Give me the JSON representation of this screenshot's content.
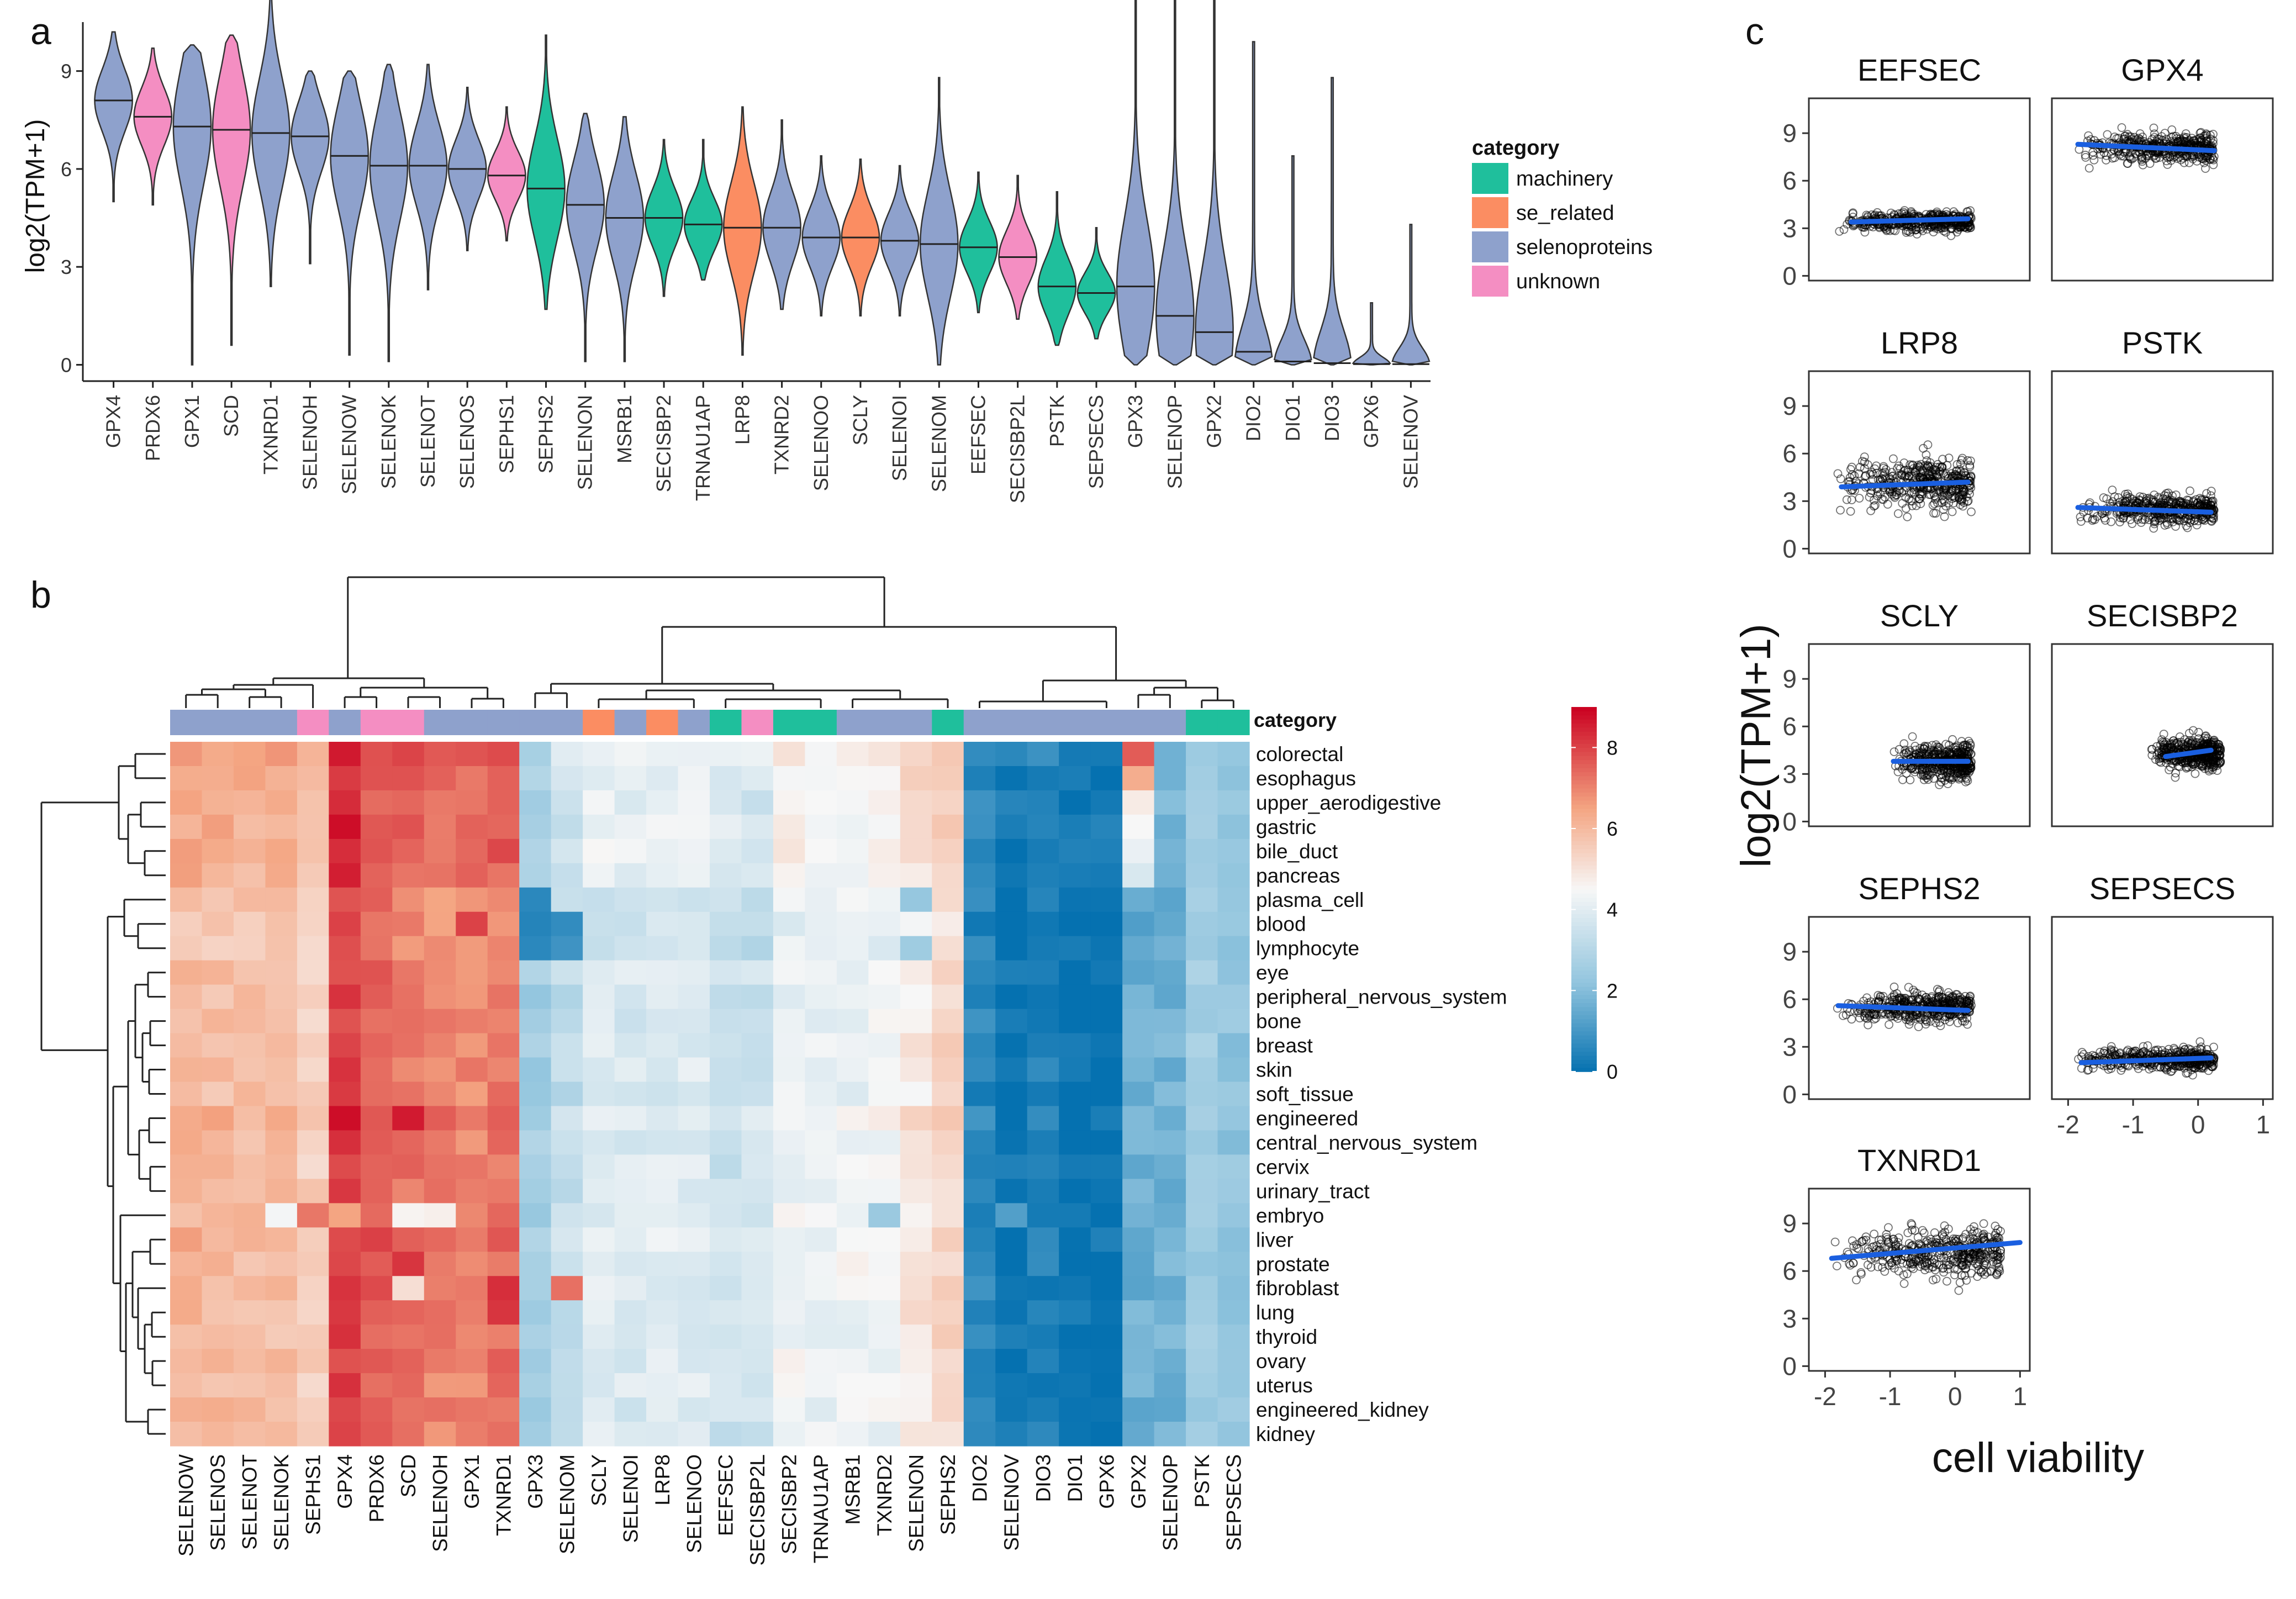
{
  "panels": {
    "a": "a",
    "b": "b",
    "c": "c"
  },
  "colors": {
    "machinery": "#1fbf9c",
    "se_related": "#fb8d62",
    "selenoproteins": "#8ea1cc",
    "unknown": "#f48ec2",
    "heat_low": "#0571b0",
    "heat_mid": "#f7f7f7",
    "heat_high": "#ca0020",
    "trend": "#1a5fe0"
  },
  "chart_data": [
    {
      "id": "a",
      "type": "violin",
      "ylabel": "log2(TPM+1)",
      "ylim": [
        -0.5,
        10.5
      ],
      "yticks": [
        0,
        3,
        6,
        9
      ],
      "legend": {
        "title": "category",
        "placement": "right",
        "items": [
          "machinery",
          "se_related",
          "selenoproteins",
          "unknown"
        ]
      },
      "genes": [
        {
          "gene": "GPX4",
          "category": "selenoproteins",
          "median": 8.1,
          "min": 5.0,
          "max": 10.2
        },
        {
          "gene": "PRDX6",
          "category": "unknown",
          "median": 7.6,
          "min": 4.9,
          "max": 9.7
        },
        {
          "gene": "GPX1",
          "category": "selenoproteins",
          "median": 7.3,
          "min": 0.0,
          "max": 9.8
        },
        {
          "gene": "SCD",
          "category": "unknown",
          "median": 7.2,
          "min": 0.6,
          "max": 10.1
        },
        {
          "gene": "TXNRD1",
          "category": "selenoproteins",
          "median": 7.1,
          "min": 2.4,
          "max": 11.6
        },
        {
          "gene": "SELENOH",
          "category": "selenoproteins",
          "median": 7.0,
          "min": 3.1,
          "max": 9.0
        },
        {
          "gene": "SELENOW",
          "category": "selenoproteins",
          "median": 6.4,
          "min": 0.3,
          "max": 9.0
        },
        {
          "gene": "SELENOK",
          "category": "selenoproteins",
          "median": 6.1,
          "min": 0.1,
          "max": 9.2
        },
        {
          "gene": "SELENOT",
          "category": "selenoproteins",
          "median": 6.1,
          "min": 2.3,
          "max": 9.2
        },
        {
          "gene": "SELENOS",
          "category": "selenoproteins",
          "median": 6.0,
          "min": 3.5,
          "max": 8.5
        },
        {
          "gene": "SEPHS1",
          "category": "unknown",
          "median": 5.8,
          "min": 3.8,
          "max": 7.9
        },
        {
          "gene": "SEPHS2",
          "category": "machinery",
          "median": 5.4,
          "min": 1.7,
          "max": 10.1
        },
        {
          "gene": "SELENON",
          "category": "selenoproteins",
          "median": 4.9,
          "min": 0.1,
          "max": 7.7
        },
        {
          "gene": "MSRB1",
          "category": "selenoproteins",
          "median": 4.5,
          "min": 0.1,
          "max": 7.6
        },
        {
          "gene": "SECISBP2",
          "category": "machinery",
          "median": 4.5,
          "min": 2.1,
          "max": 6.9
        },
        {
          "gene": "TRNAU1AP",
          "category": "machinery",
          "median": 4.3,
          "min": 2.6,
          "max": 6.9
        },
        {
          "gene": "LRP8",
          "category": "se_related",
          "median": 4.2,
          "min": 0.3,
          "max": 7.9
        },
        {
          "gene": "TXNRD2",
          "category": "selenoproteins",
          "median": 4.2,
          "min": 1.7,
          "max": 7.5
        },
        {
          "gene": "SELENOO",
          "category": "selenoproteins",
          "median": 3.9,
          "min": 1.5,
          "max": 6.4
        },
        {
          "gene": "SCLY",
          "category": "se_related",
          "median": 3.9,
          "min": 1.5,
          "max": 6.3
        },
        {
          "gene": "SELENOI",
          "category": "selenoproteins",
          "median": 3.8,
          "min": 1.5,
          "max": 6.1
        },
        {
          "gene": "SELENOM",
          "category": "selenoproteins",
          "median": 3.7,
          "min": 0.0,
          "max": 8.8
        },
        {
          "gene": "EEFSEC",
          "category": "machinery",
          "median": 3.6,
          "min": 1.6,
          "max": 5.9
        },
        {
          "gene": "SECISBP2L",
          "category": "unknown",
          "median": 3.3,
          "min": 1.4,
          "max": 5.8
        },
        {
          "gene": "PSTK",
          "category": "machinery",
          "median": 2.4,
          "min": 0.6,
          "max": 5.3
        },
        {
          "gene": "SEPSECS",
          "category": "machinery",
          "median": 2.2,
          "min": 0.8,
          "max": 4.2
        },
        {
          "gene": "GPX3",
          "category": "selenoproteins",
          "median": 2.4,
          "min": 0.0,
          "max": 11.3
        },
        {
          "gene": "SELENOP",
          "category": "selenoproteins",
          "median": 1.5,
          "min": 0.0,
          "max": 11.2
        },
        {
          "gene": "GPX2",
          "category": "selenoproteins",
          "median": 1.0,
          "min": 0.0,
          "max": 11.5
        },
        {
          "gene": "DIO2",
          "category": "selenoproteins",
          "median": 0.4,
          "min": 0.0,
          "max": 9.9
        },
        {
          "gene": "DIO1",
          "category": "selenoproteins",
          "median": 0.1,
          "min": 0.0,
          "max": 6.4
        },
        {
          "gene": "DIO3",
          "category": "selenoproteins",
          "median": 0.05,
          "min": 0.0,
          "max": 8.8
        },
        {
          "gene": "GPX6",
          "category": "selenoproteins",
          "median": 0.02,
          "min": 0.0,
          "max": 1.9
        },
        {
          "gene": "SELENOV",
          "category": "selenoproteins",
          "median": 0.02,
          "min": 0.0,
          "max": 4.3
        }
      ]
    },
    {
      "id": "b",
      "type": "heatmap",
      "annotation_title": "category",
      "colorbar": {
        "min": 0,
        "max": 9,
        "ticks": [
          0,
          2,
          4,
          6,
          8
        ]
      },
      "columns": [
        "SELENOW",
        "SELENOS",
        "SELENOT",
        "SELENOK",
        "SEPHS1",
        "GPX4",
        "PRDX6",
        "SCD",
        "SELENOH",
        "GPX1",
        "TXNRD1",
        "GPX3",
        "SELENOM",
        "SCLY",
        "SELENOI",
        "LRP8",
        "SELENOO",
        "EEFSEC",
        "SECISBP2L",
        "SECISBP2",
        "TRNAU1AP",
        "MSRB1",
        "TXNRD2",
        "SELENON",
        "SEPHS2",
        "DIO2",
        "SELENOV",
        "DIO3",
        "DIO1",
        "GPX6",
        "GPX2",
        "SELENOP",
        "PSTK",
        "SEPSECS"
      ],
      "column_categories": [
        "selenoproteins",
        "selenoproteins",
        "selenoproteins",
        "selenoproteins",
        "unknown",
        "selenoproteins",
        "unknown",
        "unknown",
        "selenoproteins",
        "selenoproteins",
        "selenoproteins",
        "selenoproteins",
        "selenoproteins",
        "se_related",
        "selenoproteins",
        "se_related",
        "selenoproteins",
        "machinery",
        "unknown",
        "machinery",
        "machinery",
        "selenoproteins",
        "selenoproteins",
        "selenoproteins",
        "machinery",
        "selenoproteins",
        "selenoproteins",
        "selenoproteins",
        "selenoproteins",
        "selenoproteins",
        "selenoproteins",
        "selenoproteins",
        "machinery",
        "machinery"
      ],
      "rows": [
        "colorectal",
        "esophagus",
        "upper_aerodigestive",
        "gastric",
        "bile_duct",
        "pancreas",
        "plasma_cell",
        "blood",
        "lymphocyte",
        "eye",
        "peripheral_nervous_system",
        "bone",
        "breast",
        "skin",
        "soft_tissue",
        "engineered",
        "central_nervous_system",
        "cervix",
        "urinary_tract",
        "embryo",
        "liver",
        "prostate",
        "fibroblast",
        "lung",
        "thyroid",
        "ovary",
        "uterus",
        "engineered_kidney",
        "kidney"
      ],
      "column_means": [
        6.1,
        6.0,
        5.9,
        5.9,
        5.5,
        8.0,
        7.5,
        7.2,
        7.0,
        7.0,
        7.2,
        2.6,
        3.3,
        3.9,
        3.8,
        3.9,
        3.9,
        3.5,
        3.5,
        4.3,
        4.2,
        4.3,
        4.3,
        4.9,
        5.3,
        0.6,
        0.1,
        0.4,
        0.1,
        0.1,
        1.6,
        1.7,
        2.5,
        2.2
      ],
      "tissue_offsets": [
        0.5,
        0.3,
        0.2,
        0.3,
        0.4,
        0.2,
        -0.2,
        -0.3,
        -0.3,
        0.0,
        -0.1,
        0.0,
        0.0,
        0.0,
        -0.1,
        0.3,
        0.0,
        0.0,
        0.0,
        0.0,
        0.2,
        0.1,
        0.1,
        0.1,
        0.0,
        0.1,
        0.0,
        0.0,
        0.0
      ],
      "highlights": [
        {
          "row": "colorectal",
          "column": "GPX2",
          "value": 7.6
        },
        {
          "row": "esophagus",
          "column": "GPX2",
          "value": 6.3
        },
        {
          "row": "upper_aerodigestive",
          "column": "GPX2",
          "value": 4.8
        },
        {
          "row": "gastric",
          "column": "GPX2",
          "value": 4.5
        },
        {
          "row": "bile_duct",
          "column": "GPX2",
          "value": 4.2
        },
        {
          "row": "pancreas",
          "column": "GPX2",
          "value": 3.8
        },
        {
          "row": "embryo",
          "column": "GPX4",
          "value": 6.5
        },
        {
          "row": "embryo",
          "column": "SCD",
          "value": 4.6
        },
        {
          "row": "embryo",
          "column": "SELENOH",
          "value": 4.7
        },
        {
          "row": "embryo",
          "column": "SELENOK",
          "value": 4.4
        },
        {
          "row": "embryo",
          "column": "SEPHS1",
          "value": 7.2
        },
        {
          "row": "embryo",
          "column": "TXNRD2",
          "value": 2.4
        },
        {
          "row": "embryo",
          "column": "SELENOV",
          "value": 1.2
        },
        {
          "row": "plasma_cell",
          "column": "SELENON",
          "value": 2.3
        },
        {
          "row": "lymphocyte",
          "column": "SELENON",
          "value": 2.5
        },
        {
          "row": "plasma_cell",
          "column": "GPX3",
          "value": 0.6
        },
        {
          "row": "blood",
          "column": "GPX3",
          "value": 0.5
        },
        {
          "row": "lymphocyte",
          "column": "GPX3",
          "value": 0.6
        },
        {
          "row": "blood",
          "column": "SELENOM",
          "value": 0.7
        },
        {
          "row": "lymphocyte",
          "column": "SELENOM",
          "value": 0.9
        },
        {
          "row": "blood",
          "column": "GPX1",
          "value": 8.0
        },
        {
          "row": "fibroblast",
          "column": "SELENOM",
          "value": 7.3
        },
        {
          "row": "gastric",
          "column": "GPX4",
          "value": 8.8
        },
        {
          "row": "engineered",
          "column": "GPX4",
          "value": 8.8
        },
        {
          "row": "engineered",
          "column": "SCD",
          "value": 8.6
        },
        {
          "row": "prostate",
          "column": "SCD",
          "value": 8.2
        },
        {
          "row": "fibroblast",
          "column": "SCD",
          "value": 5.1
        },
        {
          "row": "fibroblast",
          "column": "TXNRD1",
          "value": 8.3
        },
        {
          "row": "lung",
          "column": "TXNRD1",
          "value": 8.2
        }
      ]
    },
    {
      "id": "c",
      "type": "scatter",
      "xlabel": "cell viability",
      "ylabel": "log2(TPM+1)",
      "xlim": [
        -2.25,
        1.15
      ],
      "ylim": [
        -0.3,
        11.2
      ],
      "xticks": [
        -2,
        -1,
        0,
        1
      ],
      "yticks": [
        0,
        3,
        6,
        9
      ],
      "panels": [
        {
          "title": "EEFSEC",
          "x_range": [
            -1.85,
            0.25
          ],
          "y_center": 3.4,
          "y_spread": 0.5,
          "fit": [
            [
              -1.6,
              3.4
            ],
            [
              0.2,
              3.6
            ]
          ]
        },
        {
          "title": "GPX4",
          "x_range": [
            -1.85,
            0.25
          ],
          "y_center": 8.1,
          "y_spread": 0.75,
          "fit": [
            [
              -1.85,
              8.3
            ],
            [
              0.25,
              7.9
            ]
          ]
        },
        {
          "title": "LRP8",
          "x_range": [
            -1.85,
            0.25
          ],
          "y_center": 4.1,
          "y_spread": 1.3,
          "fit": [
            [
              -1.75,
              3.9
            ],
            [
              0.2,
              4.2
            ]
          ]
        },
        {
          "title": "PSTK",
          "x_range": [
            -1.85,
            0.25
          ],
          "y_center": 2.5,
          "y_spread": 0.75,
          "fit": [
            [
              -1.85,
              2.6
            ],
            [
              0.2,
              2.3
            ]
          ]
        },
        {
          "title": "SCLY",
          "x_range": [
            -1.0,
            0.25
          ],
          "y_center": 3.8,
          "y_spread": 0.9,
          "fit": [
            [
              -0.95,
              3.8
            ],
            [
              0.2,
              3.8
            ]
          ]
        },
        {
          "title": "SECISBP2",
          "x_range": [
            -0.75,
            0.35
          ],
          "y_center": 4.3,
          "y_spread": 0.8,
          "fit": [
            [
              -0.5,
              4.1
            ],
            [
              0.2,
              4.5
            ]
          ]
        },
        {
          "title": "SEPHS2",
          "x_range": [
            -1.85,
            0.25
          ],
          "y_center": 5.5,
          "y_spread": 0.8,
          "fit": [
            [
              -1.8,
              5.6
            ],
            [
              0.2,
              5.3
            ]
          ]
        },
        {
          "title": "SEPSECS",
          "x_range": [
            -1.85,
            0.25
          ],
          "y_center": 2.2,
          "y_spread": 0.55,
          "fit": [
            [
              -1.8,
              2.0
            ],
            [
              0.2,
              2.3
            ]
          ]
        },
        {
          "title": "TXNRD1",
          "x_range": [
            -1.85,
            0.7
          ],
          "y_center": 7.2,
          "y_spread": 1.3,
          "fit": [
            [
              -1.9,
              6.8
            ],
            [
              1.0,
              7.8
            ]
          ]
        }
      ]
    }
  ]
}
